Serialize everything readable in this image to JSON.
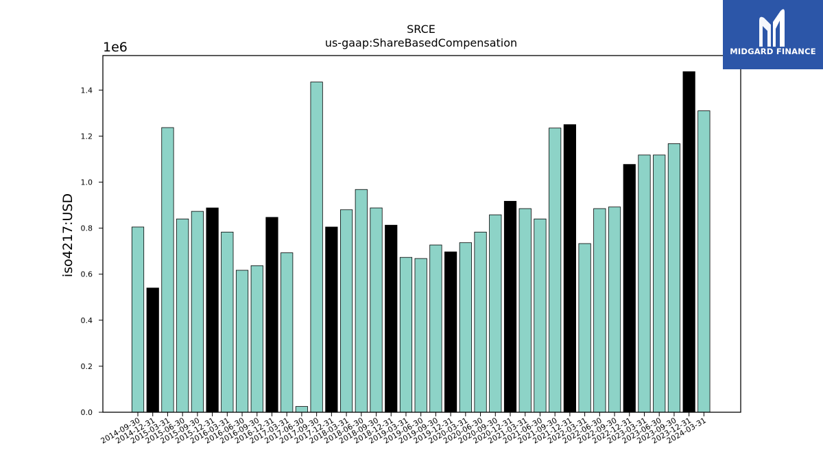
{
  "brand": {
    "name": "MIDGARD FINANCE",
    "logo_icon": "midgard-m-logo-icon",
    "background": "#2c56a8"
  },
  "chart_data": {
    "type": "bar",
    "title": "SRCE",
    "subtitle": "us-gaap:ShareBasedCompensation",
    "xlabel": "",
    "ylabel": "iso4217:USD",
    "y_scale_label": "1e6",
    "y_multiplier": 1000000,
    "ylim": [
      0,
      1.55
    ],
    "yticks": [
      "0.0",
      "0.2",
      "0.4",
      "0.6",
      "0.8",
      "1.0",
      "1.2",
      "1.4"
    ],
    "grid": false,
    "colors": {
      "regular": "#8dd3c7",
      "fiscal_year_end": "#000000",
      "edge": "#000000"
    },
    "categories": [
      "2014-09-30",
      "2014-12-31",
      "2015-03-31",
      "2015-06-30",
      "2015-09-30",
      "2015-12-31",
      "2016-03-31",
      "2016-06-30",
      "2016-09-30",
      "2016-12-31",
      "2017-03-31",
      "2017-06-30",
      "2017-09-30",
      "2017-12-31",
      "2018-03-31",
      "2018-06-30",
      "2018-09-30",
      "2018-12-31",
      "2019-03-31",
      "2019-06-30",
      "2019-09-30",
      "2019-12-31",
      "2020-03-31",
      "2020-06-30",
      "2020-09-30",
      "2020-12-31",
      "2021-03-31",
      "2021-06-30",
      "2021-09-30",
      "2021-12-31",
      "2022-03-31",
      "2022-06-30",
      "2022-09-30",
      "2022-12-31",
      "2023-03-31",
      "2023-06-30",
      "2023-09-30",
      "2023-12-31",
      "2024-03-31"
    ],
    "values": [
      0.805,
      0.54,
      1.237,
      0.84,
      0.873,
      0.888,
      0.783,
      0.617,
      0.637,
      0.847,
      0.693,
      0.025,
      1.435,
      0.805,
      0.88,
      0.968,
      0.888,
      0.813,
      0.673,
      0.668,
      0.727,
      0.697,
      0.737,
      0.783,
      0.858,
      0.917,
      0.885,
      0.84,
      1.235,
      1.25,
      0.733,
      0.885,
      0.892,
      1.077,
      1.118,
      1.118,
      1.167,
      1.48,
      1.31
    ],
    "highlight": [
      false,
      true,
      false,
      false,
      false,
      true,
      false,
      false,
      false,
      true,
      false,
      false,
      false,
      true,
      false,
      false,
      false,
      true,
      false,
      false,
      false,
      true,
      false,
      false,
      false,
      true,
      false,
      false,
      false,
      true,
      false,
      false,
      false,
      true,
      false,
      false,
      false,
      true,
      false
    ]
  }
}
